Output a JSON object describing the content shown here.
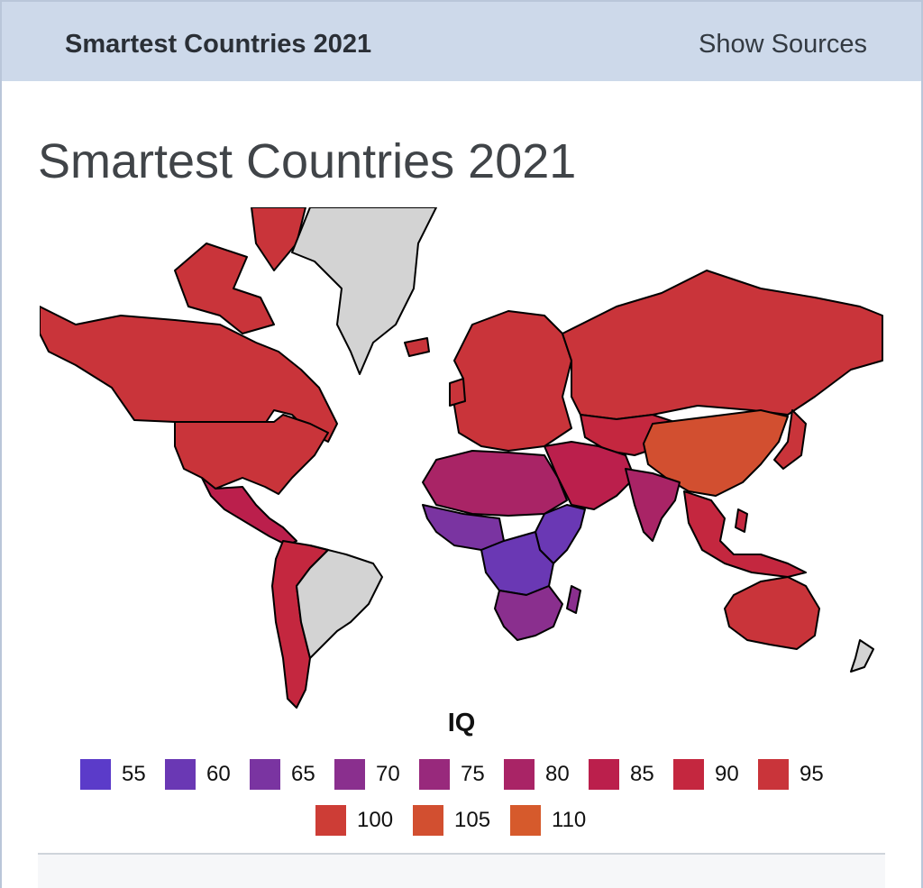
{
  "header": {
    "title": "Smartest Countries 2021",
    "sources_label": "Show Sources"
  },
  "page": {
    "title": "Smartest Countries 2021"
  },
  "map": {
    "no_data_color": "#d3d3d3",
    "border_color": "#000000",
    "regions": [
      {
        "name": "North America",
        "iq_bin": 95
      },
      {
        "name": "Central America",
        "iq_bin": 85
      },
      {
        "name": "Greenland",
        "iq_bin": null
      },
      {
        "name": "Brazil",
        "iq_bin": null
      },
      {
        "name": "Andean South America",
        "iq_bin": 90
      },
      {
        "name": "Europe",
        "iq_bin": 95
      },
      {
        "name": "Russia",
        "iq_bin": 95
      },
      {
        "name": "China",
        "iq_bin": 105
      },
      {
        "name": "Middle East",
        "iq_bin": 85
      },
      {
        "name": "India",
        "iq_bin": 80
      },
      {
        "name": "North Africa",
        "iq_bin": 80
      },
      {
        "name": "West Africa",
        "iq_bin": 65
      },
      {
        "name": "Central Africa",
        "iq_bin": 60
      },
      {
        "name": "Southern Africa",
        "iq_bin": 70
      },
      {
        "name": "Southeast Asia",
        "iq_bin": 90
      },
      {
        "name": "Australia",
        "iq_bin": 95
      },
      {
        "name": "New Zealand",
        "iq_bin": null
      }
    ]
  },
  "legend": {
    "title": "IQ",
    "items": [
      {
        "label": "55",
        "color": "#5b3bc9"
      },
      {
        "label": "60",
        "color": "#6a38b4"
      },
      {
        "label": "65",
        "color": "#7a34a1"
      },
      {
        "label": "70",
        "color": "#8a2f8e"
      },
      {
        "label": "75",
        "color": "#98297c"
      },
      {
        "label": "80",
        "color": "#a92466"
      },
      {
        "label": "85",
        "color": "#bb1f4c"
      },
      {
        "label": "90",
        "color": "#c4273f"
      },
      {
        "label": "95",
        "color": "#c9343a"
      },
      {
        "label": "100",
        "color": "#cd3d36"
      },
      {
        "label": "105",
        "color": "#d24f30"
      },
      {
        "label": "110",
        "color": "#d65a2c"
      }
    ]
  }
}
